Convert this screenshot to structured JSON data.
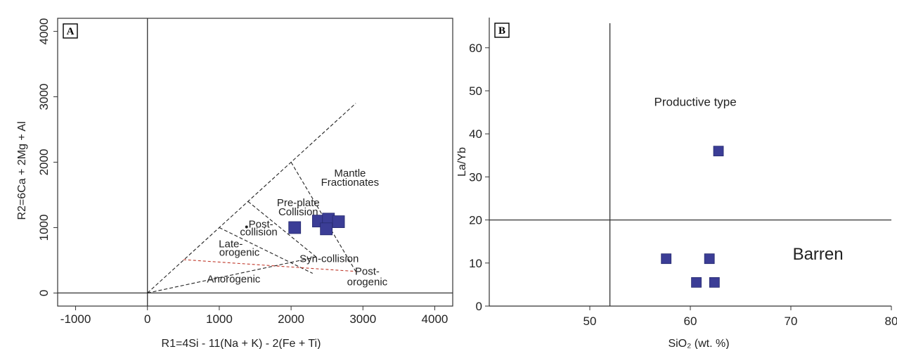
{
  "colors": {
    "marker": "#3b3d96",
    "marker_edge": "#262a6e",
    "axis": "#333333",
    "boundary": "#222222",
    "anorogenic_line": "#c0392b"
  },
  "chart_data": [
    {
      "panel": "A",
      "type": "scatter",
      "xlabel": "R1=4Si - 11(Na + K) - 2(Fe + Ti)",
      "ylabel": "R2=6Ca + 2Mg + Al",
      "xlim": [
        -1250,
        4250
      ],
      "ylim": [
        -200,
        4200
      ],
      "xticks": [
        -1000,
        0,
        1000,
        2000,
        3000,
        4000
      ],
      "yticks": [
        0,
        1000,
        2000,
        3000,
        4000
      ],
      "grid": false,
      "axis_lines": {
        "x": 0,
        "y": 0
      },
      "boundaries": [
        {
          "style": "dashed",
          "points": [
            [
              0,
              0
            ],
            [
              2900,
              2900
            ]
          ]
        },
        {
          "style": "dashed",
          "points": [
            [
              1000,
              1000
            ],
            [
              2300,
              300
            ]
          ]
        },
        {
          "style": "dashed",
          "points": [
            [
              1400,
              1400
            ],
            [
              2350,
              550
            ]
          ]
        },
        {
          "style": "dashed",
          "points": [
            [
              2000,
              2000
            ],
            [
              2900,
              330
            ]
          ]
        },
        {
          "style": "dashed",
          "points": [
            [
              0,
              0
            ],
            [
              2350,
              550
            ]
          ]
        },
        {
          "style": "dashed_red",
          "points": [
            [
              500,
              510
            ],
            [
              2900,
              330
            ]
          ]
        }
      ],
      "region_labels": [
        {
          "text": "Mantle",
          "x": 2820,
          "y": 1780
        },
        {
          "text": "Fractionates",
          "x": 2820,
          "y": 1640
        },
        {
          "text": "Pre-plate",
          "x": 2100,
          "y": 1330
        },
        {
          "text": "Collision",
          "x": 2100,
          "y": 1190
        },
        {
          "text": "Post-",
          "x": 1580,
          "y": 1000
        },
        {
          "text": "collision",
          "x": 1550,
          "y": 880
        },
        {
          "text": "Late-",
          "x": 1160,
          "y": 700
        },
        {
          "text": "orogenic",
          "x": 1280,
          "y": 570
        },
        {
          "text": "Syn-collision",
          "x": 2530,
          "y": 470
        },
        {
          "text": "Anorogenic",
          "x": 1200,
          "y": 160
        },
        {
          "text": "Post-",
          "x": 3060,
          "y": 280
        },
        {
          "text": "orogenic",
          "x": 3060,
          "y": 120
        }
      ],
      "annotation_dot": {
        "x": 1380,
        "y": 1010
      },
      "points": [
        {
          "x": 2050,
          "y": 1000
        },
        {
          "x": 2380,
          "y": 1100
        },
        {
          "x": 2520,
          "y": 1130
        },
        {
          "x": 2660,
          "y": 1090
        },
        {
          "x": 2490,
          "y": 980
        }
      ]
    },
    {
      "panel": "B",
      "type": "scatter",
      "xlabel": "SiO₂ (wt. %)",
      "ylabel": "La/Yb",
      "xlim": [
        40,
        80
      ],
      "ylim": [
        0,
        67
      ],
      "xticks": [
        50,
        60,
        70,
        80
      ],
      "yticks": [
        0,
        10,
        20,
        30,
        40,
        50,
        60
      ],
      "grid": false,
      "divider_x": 52,
      "divider_y": 20,
      "region_labels": [
        {
          "text": "Productive type",
          "x": 60.5,
          "y": 46.5,
          "size": "medium"
        },
        {
          "text": "Barren",
          "x": 72.7,
          "y": 10.8,
          "size": "large"
        }
      ],
      "points": [
        {
          "x": 57.6,
          "y": 11
        },
        {
          "x": 61.9,
          "y": 11
        },
        {
          "x": 60.6,
          "y": 5.5
        },
        {
          "x": 62.4,
          "y": 5.5
        },
        {
          "x": 62.8,
          "y": 36
        }
      ]
    }
  ]
}
